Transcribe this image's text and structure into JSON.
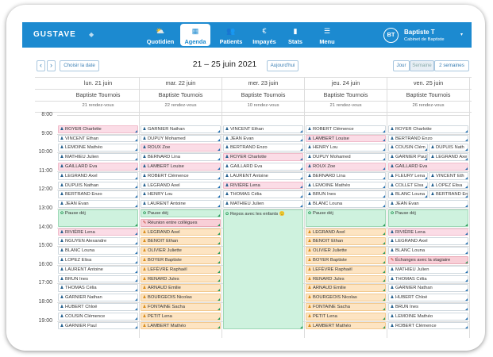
{
  "app": {
    "logo": "GUSTAVE",
    "logo_mark": "◆"
  },
  "nav": [
    {
      "label": "Quotidien",
      "icon": "⛅",
      "name": "nav-quotidien"
    },
    {
      "label": "Agenda",
      "icon": "▦",
      "name": "nav-agenda"
    },
    {
      "label": "Patients",
      "icon": "👥",
      "name": "nav-patients"
    },
    {
      "label": "Impayés",
      "icon": "€",
      "name": "nav-impayes"
    },
    {
      "label": "Stats",
      "icon": "▮",
      "name": "nav-stats"
    },
    {
      "label": "Menu",
      "icon": "☰",
      "name": "nav-menu"
    }
  ],
  "user": {
    "initials": "BT",
    "name": "Baptiste T",
    "org": "Cabinet de Baptiste",
    "caret": "▾"
  },
  "toolbar": {
    "prev": "‹",
    "next": "›",
    "choose_date": "Choisir la date",
    "title": "21 – 25 juin 2021",
    "today": "Aujourd'hui",
    "view_day": "Jour",
    "view_week": "Semaine",
    "view_2weeks": "2 semaines"
  },
  "days": [
    {
      "date": "lun. 21 juin",
      "practitioner": "Baptiste Tournois",
      "count": "21 rendez-vous"
    },
    {
      "date": "mar. 22 juin",
      "practitioner": "Baptiste Tournois",
      "count": "22 rendez-vous"
    },
    {
      "date": "mer. 23 juin",
      "practitioner": "Baptiste Tournois",
      "count": "10 rendez-vous"
    },
    {
      "date": "jeu. 24 juin",
      "practitioner": "Baptiste Tournois",
      "count": "21 rendez-vous"
    },
    {
      "date": "ven. 25 juin",
      "practitioner": "Baptiste Tournois",
      "count": "26 rendez-vous"
    }
  ],
  "hours": [
    "8:00",
    "9:00",
    "10:00",
    "11:00",
    "12:00",
    "13:00",
    "14:00",
    "15:00",
    "16:00",
    "17:00",
    "18:00",
    "19:00"
  ],
  "events": [
    [
      {
        "slot": 1,
        "label": "ROYER Charlotte",
        "type": "pink",
        "icon": "♟"
      },
      {
        "slot": 2,
        "label": "VINCENT Ethan",
        "type": "",
        "icon": "♟"
      },
      {
        "slot": 3,
        "label": "LEMOINE Mathéo",
        "type": "",
        "icon": "♟"
      },
      {
        "slot": 4,
        "label": "MATHIEU Julien",
        "type": "",
        "icon": "♟"
      },
      {
        "slot": 5,
        "label": "GAILLARD Eva",
        "type": "pink",
        "icon": "♟"
      },
      {
        "slot": 6,
        "label": "LEGRAND Axel",
        "type": "",
        "icon": "♟"
      },
      {
        "slot": 7,
        "label": "DUPUIS Nathan",
        "type": "",
        "icon": "♟"
      },
      {
        "slot": 8,
        "label": "BERTRAND Enzo",
        "type": "",
        "icon": "♟"
      },
      {
        "slot": 9,
        "label": "JEAN Evan",
        "type": "",
        "icon": "♟"
      },
      {
        "slot": 10,
        "label": "Pause déj",
        "type": "green",
        "icon": "✿",
        "span": 2
      },
      {
        "slot": 12,
        "label": "RIVIÈRE Lena",
        "type": "pink",
        "icon": "♟"
      },
      {
        "slot": 13,
        "label": "NGUYEN Alexandre",
        "type": "",
        "icon": "♟"
      },
      {
        "slot": 14,
        "label": "BLANC Louna",
        "type": "",
        "icon": "♟"
      },
      {
        "slot": 15,
        "label": "LOPEZ Elisa",
        "type": "",
        "icon": "♟"
      },
      {
        "slot": 16,
        "label": "LAURENT Antoine",
        "type": "",
        "icon": "♟"
      },
      {
        "slot": 17,
        "label": "BRUN Ines",
        "type": "",
        "icon": "♟"
      },
      {
        "slot": 18,
        "label": "THOMAS Célia",
        "type": "",
        "icon": "♟"
      },
      {
        "slot": 19,
        "label": "GARNIER Nathan",
        "type": "",
        "icon": "♟"
      },
      {
        "slot": 20,
        "label": "HUBERT Chloé",
        "type": "",
        "icon": "♟"
      },
      {
        "slot": 21,
        "label": "COUSIN Clémence",
        "type": "",
        "icon": "♟"
      },
      {
        "slot": 22,
        "label": "GARNIER Paul",
        "type": "",
        "icon": "♟"
      }
    ],
    [
      {
        "slot": 1,
        "label": "GARNIER Nathan",
        "type": "",
        "icon": "♟"
      },
      {
        "slot": 2,
        "label": "DUPUY Mohamed",
        "type": "",
        "icon": "♟"
      },
      {
        "slot": 3,
        "label": "ROUX Zoe",
        "type": "pink",
        "icon": "♟"
      },
      {
        "slot": 4,
        "label": "BERNARD Lina",
        "type": "",
        "icon": "♟"
      },
      {
        "slot": 5,
        "label": "LAMBERT Louise",
        "type": "pink",
        "icon": "♟"
      },
      {
        "slot": 6,
        "label": "ROBERT Clémence",
        "type": "",
        "icon": "♟"
      },
      {
        "slot": 7,
        "label": "LEGRAND Axel",
        "type": "",
        "icon": "♟"
      },
      {
        "slot": 8,
        "label": "HENRY Lou",
        "type": "",
        "icon": "♟"
      },
      {
        "slot": 9,
        "label": "LAURENT Antoine",
        "type": "",
        "icon": "♟"
      },
      {
        "slot": 10,
        "label": "Pause déj",
        "type": "green",
        "icon": "✿"
      },
      {
        "slot": 11,
        "label": "Réunion entre collègues",
        "type": "pinkdk",
        "icon": "✎"
      },
      {
        "slot": 12,
        "label": "LEGRAND Axel",
        "type": "orange",
        "icon": "♟"
      },
      {
        "slot": 13,
        "label": "BENOIT Ethan",
        "type": "orange",
        "icon": "♟"
      },
      {
        "slot": 14,
        "label": "OLIVIER Juliette",
        "type": "orange",
        "icon": "♟"
      },
      {
        "slot": 15,
        "label": "BOYER Baptiste",
        "type": "orange",
        "icon": "♟"
      },
      {
        "slot": 16,
        "label": "LEFÈVRE Raphaël",
        "type": "orange",
        "icon": "♟"
      },
      {
        "slot": 17,
        "label": "RENARD Jules",
        "type": "orange",
        "icon": "♟"
      },
      {
        "slot": 18,
        "label": "ARNAUD Emilie",
        "type": "orange",
        "icon": "♟"
      },
      {
        "slot": 19,
        "label": "BOURGEOIS Nicolas",
        "type": "orange",
        "icon": "♟"
      },
      {
        "slot": 20,
        "label": "FONTAINE Sacha",
        "type": "orange",
        "icon": "♟"
      },
      {
        "slot": 21,
        "label": "PETIT Lena",
        "type": "orange",
        "icon": "♟"
      },
      {
        "slot": 22,
        "label": "LAMBERT Mathéo",
        "type": "orange",
        "icon": "♟"
      }
    ],
    [
      {
        "slot": 1,
        "label": "VINCENT Ethan",
        "type": "",
        "icon": "♟"
      },
      {
        "slot": 2,
        "label": "JEAN Evan",
        "type": "",
        "icon": "♟"
      },
      {
        "slot": 3,
        "label": "BERTRAND Enzo",
        "type": "",
        "icon": "♟"
      },
      {
        "slot": 4,
        "label": "ROYER Charlotte",
        "type": "pink",
        "icon": "♟"
      },
      {
        "slot": 5,
        "label": "GAILLARD Eva",
        "type": "",
        "icon": "♟"
      },
      {
        "slot": 6,
        "label": "LAURENT Antoine",
        "type": "",
        "icon": "♟"
      },
      {
        "slot": 7,
        "label": "RIVIÈRE Lena",
        "type": "pink",
        "icon": "♟"
      },
      {
        "slot": 8,
        "label": "THOMAS Célia",
        "type": "",
        "icon": "♟"
      },
      {
        "slot": 9,
        "label": "MATHIEU Julien",
        "type": "",
        "icon": "♟"
      },
      {
        "slot": 10,
        "label": "Repos avec les enfants 🙂",
        "type": "green",
        "icon": "✿",
        "span": 13
      }
    ],
    [
      {
        "slot": 1,
        "label": "ROBERT Clémence",
        "type": "",
        "icon": "♟"
      },
      {
        "slot": 2,
        "label": "LAMBERT Louise",
        "type": "pink",
        "icon": "♟"
      },
      {
        "slot": 3,
        "label": "HENRY Lou",
        "type": "",
        "icon": "♟"
      },
      {
        "slot": 4,
        "label": "DUPUY Mohamed",
        "type": "",
        "icon": "♟"
      },
      {
        "slot": 5,
        "label": "ROUX Zoe",
        "type": "pink",
        "icon": "♟"
      },
      {
        "slot": 6,
        "label": "BERNARD Lina",
        "type": "",
        "icon": "♟"
      },
      {
        "slot": 7,
        "label": "LEMOINE Mathéo",
        "type": "",
        "icon": "♟"
      },
      {
        "slot": 8,
        "label": "BRUN Ines",
        "type": "",
        "icon": "♟"
      },
      {
        "slot": 9,
        "label": "BLANC Louna",
        "type": "",
        "icon": "♟"
      },
      {
        "slot": 10,
        "label": "Pause déj",
        "type": "green",
        "icon": "✿",
        "span": 2
      },
      {
        "slot": 12,
        "label": "LEGRAND Axel",
        "type": "orange",
        "icon": "♟"
      },
      {
        "slot": 13,
        "label": "BENOIT Ethan",
        "type": "orange",
        "icon": "♟"
      },
      {
        "slot": 14,
        "label": "OLIVIER Juliette",
        "type": "orange",
        "icon": "♟"
      },
      {
        "slot": 15,
        "label": "BOYER Baptiste",
        "type": "orange",
        "icon": "♟"
      },
      {
        "slot": 16,
        "label": "LEFÈVRE Raphaël",
        "type": "orange",
        "icon": "♟"
      },
      {
        "slot": 17,
        "label": "RENARD Jules",
        "type": "orange",
        "icon": "♟"
      },
      {
        "slot": 18,
        "label": "ARNAUD Emilie",
        "type": "orange",
        "icon": "♟"
      },
      {
        "slot": 19,
        "label": "BOURGEOIS Nicolas",
        "type": "orange",
        "icon": "♟"
      },
      {
        "slot": 20,
        "label": "FONTAINE Sacha",
        "type": "orange",
        "icon": "♟"
      },
      {
        "slot": 21,
        "label": "PETIT Lena",
        "type": "orange",
        "icon": "♟"
      },
      {
        "slot": 22,
        "label": "LAMBERT Mathéo",
        "type": "orange",
        "icon": "♟"
      }
    ],
    [
      {
        "slot": 1,
        "label": "ROYER Charlotte",
        "type": "",
        "icon": "♟"
      },
      {
        "slot": 2,
        "label": "BERTRAND Enzo",
        "type": "",
        "icon": "♟"
      },
      {
        "slot": 3,
        "label": "COUSIN Clém",
        "type": "",
        "icon": "♟",
        "half": "left"
      },
      {
        "slot": 3,
        "label": "DUPUIS Nath",
        "type": "",
        "icon": "♟",
        "half": "right"
      },
      {
        "slot": 4,
        "label": "GARNIER Paul",
        "type": "",
        "icon": "♟",
        "half": "left"
      },
      {
        "slot": 4,
        "label": "LEGRAND Axe",
        "type": "",
        "icon": "♟",
        "half": "right"
      },
      {
        "slot": 5,
        "label": "GAILLARD Eva",
        "type": "pink",
        "icon": "♟"
      },
      {
        "slot": 6,
        "label": "FLEURY Lena",
        "type": "",
        "icon": "♟",
        "half": "left"
      },
      {
        "slot": 6,
        "label": "VINCENT Eth",
        "type": "",
        "icon": "♟",
        "half": "right"
      },
      {
        "slot": 7,
        "label": "COLLET Elsa",
        "type": "",
        "icon": "♟",
        "half": "left"
      },
      {
        "slot": 7,
        "label": "LOPEZ Elisa",
        "type": "",
        "icon": "♟",
        "half": "right"
      },
      {
        "slot": 8,
        "label": "BLANC Louna",
        "type": "",
        "icon": "♟",
        "half": "left"
      },
      {
        "slot": 8,
        "label": "BERTRAND En",
        "type": "",
        "icon": "♟",
        "half": "right"
      },
      {
        "slot": 9,
        "label": "JEAN Evan",
        "type": "",
        "icon": "♟"
      },
      {
        "slot": 10,
        "label": "Pause déj",
        "type": "green",
        "icon": "✿",
        "span": 2
      },
      {
        "slot": 12,
        "label": "RIVIÈRE Lena",
        "type": "pink",
        "icon": "♟"
      },
      {
        "slot": 13,
        "label": "LEGRAND Axel",
        "type": "",
        "icon": "♟"
      },
      {
        "slot": 14,
        "label": "BLANC Louna",
        "type": "",
        "icon": "♟"
      },
      {
        "slot": 15,
        "label": "Échanges avec la stagiaire",
        "type": "pinkdk",
        "icon": "✎"
      },
      {
        "slot": 16,
        "label": "MATHIEU Julien",
        "type": "",
        "icon": "♟"
      },
      {
        "slot": 17,
        "label": "THOMAS Célia",
        "type": "",
        "icon": "♟"
      },
      {
        "slot": 18,
        "label": "GARNIER Nathan",
        "type": "",
        "icon": "♟"
      },
      {
        "slot": 19,
        "label": "HUBERT Chloé",
        "type": "",
        "icon": "♟"
      },
      {
        "slot": 20,
        "label": "BRUN Ines",
        "type": "",
        "icon": "♟"
      },
      {
        "slot": 21,
        "label": "LEMOINE Mathéo",
        "type": "",
        "icon": "♟"
      },
      {
        "slot": 22,
        "label": "ROBERT Clémence",
        "type": "",
        "icon": "♟"
      }
    ]
  ]
}
